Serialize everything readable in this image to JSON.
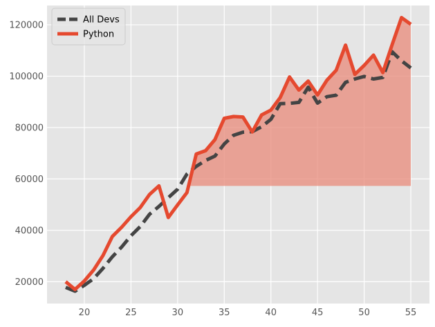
{
  "chart_data": {
    "type": "line",
    "title": "",
    "xlabel": "",
    "ylabel": "",
    "xlim": [
      16,
      57
    ],
    "ylim": [
      11500,
      127500
    ],
    "xticks": [
      20,
      25,
      30,
      35,
      40,
      45,
      50,
      55
    ],
    "yticks": [
      20000,
      40000,
      60000,
      80000,
      100000,
      120000
    ],
    "x": [
      18,
      19,
      20,
      21,
      22,
      23,
      24,
      25,
      26,
      27,
      28,
      29,
      30,
      31,
      32,
      33,
      34,
      35,
      36,
      37,
      38,
      39,
      40,
      41,
      42,
      43,
      44,
      45,
      46,
      47,
      48,
      49,
      50,
      51,
      52,
      53,
      54,
      55
    ],
    "series": [
      {
        "name": "All Devs",
        "style": "dashed",
        "color": "#444444",
        "values": [
          17800,
          16300,
          18600,
          21200,
          25200,
          29700,
          33500,
          37900,
          41500,
          46300,
          49300,
          52700,
          56000,
          61900,
          64900,
          67200,
          68900,
          73600,
          77000,
          78200,
          78400,
          80300,
          83200,
          89300,
          89400,
          89800,
          95700,
          89500,
          92000,
          92600,
          97600,
          98900,
          99900,
          98900,
          99500,
          109500,
          106000,
          103200
        ]
      },
      {
        "name": "Python",
        "style": "solid",
        "color": "#e5492f",
        "values": [
          20000,
          17000,
          20300,
          24600,
          30200,
          37600,
          41200,
          45300,
          48900,
          54000,
          57300,
          45000,
          49900,
          54700,
          69700,
          71000,
          75300,
          83600,
          84300,
          84100,
          78300,
          84900,
          86800,
          91700,
          99700,
          94600,
          98100,
          92700,
          98400,
          102300,
          112100,
          100700,
          104200,
          108200,
          101400,
          112300,
          122800,
          120200
        ]
      }
    ],
    "fill": {
      "series": "Python",
      "baseline": 57287,
      "color": "#e8897a",
      "alpha": 0.75
    },
    "legend": {
      "position": "top-left",
      "entries": [
        "All Devs",
        "Python"
      ]
    },
    "grid": true,
    "background": "#e5e5e5",
    "grid_color": "#ffffff",
    "tick_label_color": "#555555"
  }
}
